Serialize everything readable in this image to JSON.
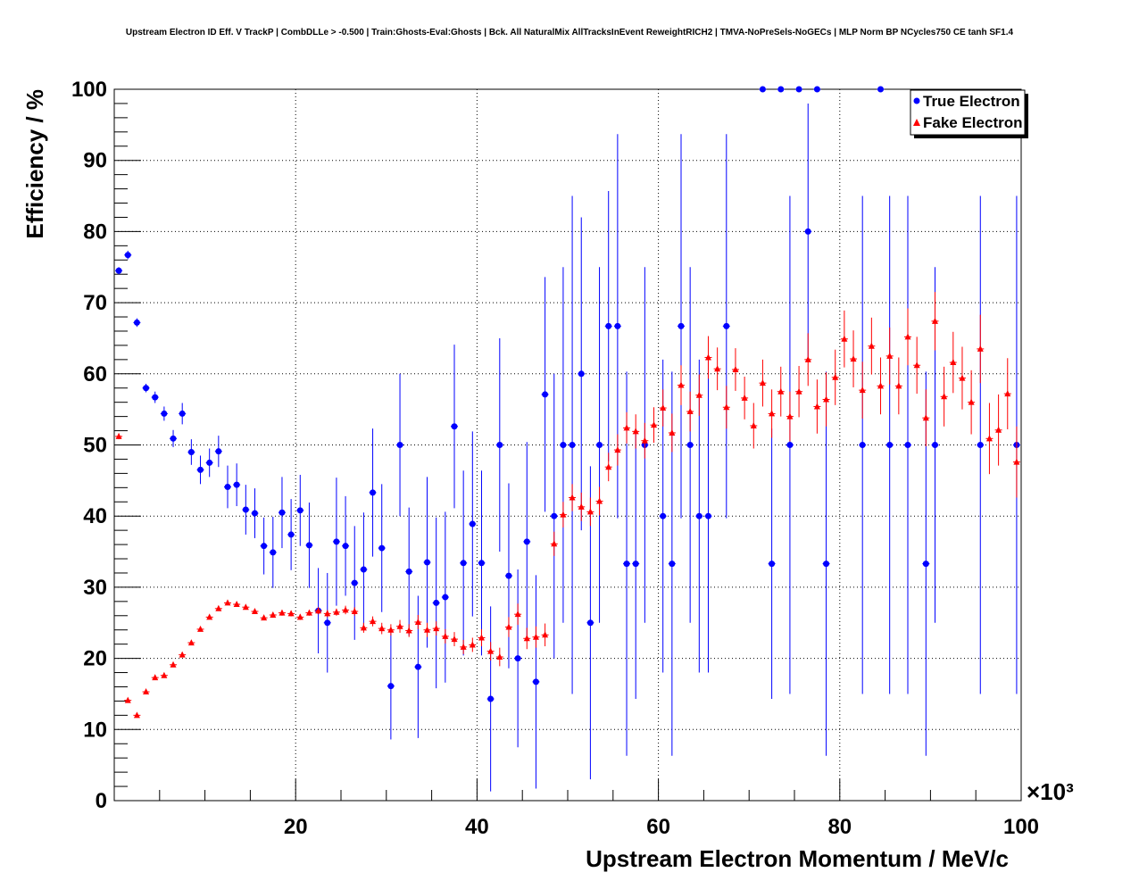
{
  "chart_data": {
    "type": "scatter",
    "title": "Upstream Electron ID Eff. V TrackP | CombDLLe > -0.500 | Train:Ghosts-Eval:Ghosts | Bck. All NaturalMix AllTracksInEvent ReweightRICH2 | TMVA-NoPreSels-NoGECs | MLP Norm BP NCycles750 CE tanh SF1.4",
    "xlabel": "Upstream Electron Momentum / MeV/c",
    "ylabel": "Efficiency / %",
    "x_multiplier_label": "×10³",
    "xlim": [
      0,
      100
    ],
    "ylim": [
      0,
      100
    ],
    "x_ticks": [
      "20",
      "40",
      "60",
      "80",
      "100"
    ],
    "y_ticks": [
      "0",
      "10",
      "20",
      "30",
      "40",
      "50",
      "60",
      "70",
      "80",
      "90",
      "100"
    ],
    "grid": true,
    "legend_position": "top-right",
    "series": [
      {
        "name": "True Electron",
        "color": "#0000ff",
        "marker": "circle",
        "points": [
          [
            0.5,
            74.5,
            0.5
          ],
          [
            1.5,
            76.7,
            0.6
          ],
          [
            2.5,
            67.2,
            0.6
          ],
          [
            3.5,
            58.0,
            0.6
          ],
          [
            4.5,
            56.7,
            0.8
          ],
          [
            5.5,
            54.4,
            1
          ],
          [
            6.5,
            50.9,
            1.2
          ],
          [
            7.5,
            54.4,
            1.5
          ],
          [
            8.5,
            49.0,
            1.8
          ],
          [
            9.5,
            46.5,
            2
          ],
          [
            10.5,
            47.5,
            2
          ],
          [
            11.5,
            49.1,
            2.2
          ],
          [
            12.5,
            44.1,
            3
          ],
          [
            13.5,
            44.4,
            3
          ],
          [
            14.5,
            40.9,
            3.5
          ],
          [
            15.5,
            40.4,
            3.5
          ],
          [
            16.5,
            35.8,
            4
          ],
          [
            17.5,
            34.9,
            5
          ],
          [
            18.5,
            40.5,
            5
          ],
          [
            19.5,
            37.4,
            5
          ],
          [
            20.5,
            40.8,
            5
          ],
          [
            21.5,
            35.9,
            6
          ],
          [
            22.5,
            26.7,
            6
          ],
          [
            23.5,
            25.0,
            7
          ],
          [
            24.5,
            36.4,
            9
          ],
          [
            25.5,
            35.8,
            7
          ],
          [
            26.5,
            30.6,
            8
          ],
          [
            27.5,
            32.5,
            8
          ],
          [
            28.5,
            43.3,
            9
          ],
          [
            29.5,
            35.5,
            9
          ],
          [
            30.5,
            16.1,
            7.5
          ],
          [
            31.5,
            50.0,
            10
          ],
          [
            32.5,
            32.2,
            9
          ],
          [
            33.5,
            18.8,
            10
          ],
          [
            34.5,
            33.5,
            12
          ],
          [
            35.5,
            27.8,
            12
          ],
          [
            36.5,
            28.6,
            12
          ],
          [
            37.5,
            52.6,
            11.5
          ],
          [
            38.5,
            33.4,
            13
          ],
          [
            39.5,
            38.9,
            13
          ],
          [
            40.5,
            33.4,
            13
          ],
          [
            41.5,
            14.3,
            13
          ],
          [
            42.5,
            50.0,
            15
          ],
          [
            43.5,
            31.6,
            13
          ],
          [
            44.5,
            20.0,
            12.5
          ],
          [
            45.5,
            36.4,
            14
          ],
          [
            46.5,
            16.7,
            15
          ],
          [
            47.5,
            57.1,
            16.5
          ],
          [
            48.5,
            40.0,
            20
          ],
          [
            49.5,
            50.0,
            25
          ],
          [
            50.5,
            50.0,
            35
          ],
          [
            51.5,
            60.0,
            22
          ],
          [
            52.5,
            25.0,
            22
          ],
          [
            53.5,
            50.0,
            25
          ],
          [
            54.5,
            66.7,
            19
          ],
          [
            55.5,
            66.7,
            27
          ],
          [
            56.5,
            33.3,
            27
          ],
          [
            57.5,
            33.3,
            19
          ],
          [
            58.5,
            50.0,
            25
          ],
          [
            60.5,
            40.0,
            22
          ],
          [
            61.5,
            33.3,
            27
          ],
          [
            62.5,
            66.7,
            27
          ],
          [
            63.5,
            50.0,
            25
          ],
          [
            64.5,
            40.0,
            22
          ],
          [
            65.5,
            40.0,
            22
          ],
          [
            67.5,
            66.7,
            27
          ],
          [
            71.5,
            100.0,
            0
          ],
          [
            72.5,
            33.3,
            19
          ],
          [
            73.5,
            100.0,
            0
          ],
          [
            74.5,
            50.0,
            35
          ],
          [
            75.5,
            100.0,
            0
          ],
          [
            76.5,
            80.0,
            18
          ],
          [
            77.5,
            100.0,
            0
          ],
          [
            78.5,
            33.3,
            27
          ],
          [
            82.5,
            50.0,
            35
          ],
          [
            84.5,
            100.0,
            0
          ],
          [
            85.5,
            50.0,
            35
          ],
          [
            87.5,
            50.0,
            35
          ],
          [
            89.5,
            33.3,
            27
          ],
          [
            90.5,
            50.0,
            25
          ],
          [
            95.5,
            50.0,
            35
          ],
          [
            99.5,
            50.0,
            35
          ]
        ]
      },
      {
        "name": "Fake Electron",
        "color": "#ff0000",
        "marker": "triangle",
        "points": [
          [
            0.5,
            51.2,
            0.4
          ],
          [
            1.5,
            14.1,
            0.3
          ],
          [
            2.5,
            12.0,
            0.3
          ],
          [
            3.5,
            15.3,
            0.3
          ],
          [
            4.5,
            17.3,
            0.3
          ],
          [
            5.5,
            17.6,
            0.3
          ],
          [
            6.5,
            19.1,
            0.3
          ],
          [
            7.5,
            20.5,
            0.3
          ],
          [
            8.5,
            22.2,
            0.3
          ],
          [
            9.5,
            24.1,
            0.3
          ],
          [
            10.5,
            25.8,
            0.3
          ],
          [
            11.5,
            27.0,
            0.3
          ],
          [
            12.5,
            27.8,
            0.3
          ],
          [
            13.5,
            27.6,
            0.3
          ],
          [
            14.5,
            27.2,
            0.3
          ],
          [
            15.5,
            26.6,
            0.3
          ],
          [
            16.5,
            25.7,
            0.3
          ],
          [
            17.5,
            26.1,
            0.4
          ],
          [
            18.5,
            26.4,
            0.4
          ],
          [
            19.5,
            26.3,
            0.4
          ],
          [
            20.5,
            25.8,
            0.4
          ],
          [
            21.5,
            26.4,
            0.4
          ],
          [
            22.5,
            26.7,
            0.5
          ],
          [
            23.5,
            26.3,
            0.5
          ],
          [
            24.5,
            26.5,
            0.5
          ],
          [
            25.5,
            26.8,
            0.6
          ],
          [
            26.5,
            26.6,
            0.6
          ],
          [
            27.5,
            24.3,
            0.7
          ],
          [
            28.5,
            25.2,
            0.7
          ],
          [
            29.5,
            24.2,
            0.8
          ],
          [
            30.5,
            24.0,
            0.8
          ],
          [
            31.5,
            24.5,
            0.9
          ],
          [
            32.5,
            23.9,
            0.9
          ],
          [
            33.5,
            25.1,
            1
          ],
          [
            34.5,
            24.0,
            1
          ],
          [
            35.5,
            24.2,
            1
          ],
          [
            36.5,
            23.1,
            1
          ],
          [
            37.5,
            22.7,
            1
          ],
          [
            38.5,
            21.6,
            1
          ],
          [
            39.5,
            21.9,
            1
          ],
          [
            40.5,
            22.9,
            1.2
          ],
          [
            41.5,
            21.0,
            1.3
          ],
          [
            42.5,
            20.2,
            1.3
          ],
          [
            43.5,
            24.4,
            1.4
          ],
          [
            44.5,
            26.2,
            1.5
          ],
          [
            45.5,
            22.8,
            1.5
          ],
          [
            46.5,
            23.0,
            1.5
          ],
          [
            47.5,
            23.3,
            1.6
          ],
          [
            48.5,
            36.1,
            1.7
          ],
          [
            49.5,
            40.2,
            1.8
          ],
          [
            50.5,
            42.6,
            1.9
          ],
          [
            51.5,
            41.3,
            2
          ],
          [
            52.5,
            40.6,
            2
          ],
          [
            53.5,
            42.1,
            2
          ],
          [
            54.5,
            46.9,
            2
          ],
          [
            55.5,
            49.3,
            2.2
          ],
          [
            56.5,
            52.4,
            2.2
          ],
          [
            57.5,
            51.9,
            2.4
          ],
          [
            58.5,
            50.6,
            2.5
          ],
          [
            59.5,
            52.8,
            2.5
          ],
          [
            60.5,
            55.2,
            2.6
          ],
          [
            61.5,
            51.7,
            2.7
          ],
          [
            62.5,
            58.4,
            2.8
          ],
          [
            63.5,
            54.7,
            2.8
          ],
          [
            64.5,
            57.0,
            2.9
          ],
          [
            65.5,
            62.3,
            3
          ],
          [
            66.5,
            60.7,
            3
          ],
          [
            67.5,
            55.3,
            3
          ],
          [
            68.5,
            60.6,
            3
          ],
          [
            69.5,
            56.6,
            3
          ],
          [
            70.5,
            52.7,
            3.2
          ],
          [
            71.5,
            58.7,
            3.3
          ],
          [
            72.5,
            54.4,
            3.4
          ],
          [
            73.5,
            57.5,
            3.5
          ],
          [
            74.5,
            54.0,
            3.5
          ],
          [
            75.5,
            57.5,
            3.6
          ],
          [
            76.5,
            62.0,
            3.7
          ],
          [
            77.5,
            55.4,
            3.8
          ],
          [
            78.5,
            56.4,
            3.8
          ],
          [
            79.5,
            59.5,
            3.9
          ],
          [
            80.5,
            64.9,
            4
          ],
          [
            81.5,
            62.1,
            4
          ],
          [
            82.5,
            57.7,
            4
          ],
          [
            83.5,
            63.9,
            4
          ],
          [
            84.5,
            58.3,
            4
          ],
          [
            85.5,
            62.5,
            4
          ],
          [
            86.5,
            58.3,
            4
          ],
          [
            87.5,
            65.2,
            4
          ],
          [
            88.5,
            61.2,
            4
          ],
          [
            89.5,
            53.8,
            4
          ],
          [
            90.5,
            67.4,
            4.1
          ],
          [
            91.5,
            56.8,
            4.2
          ],
          [
            92.5,
            61.6,
            4.3
          ],
          [
            93.5,
            59.4,
            4.4
          ],
          [
            94.5,
            56.0,
            4.5
          ],
          [
            95.5,
            63.5,
            4.8
          ],
          [
            96.5,
            50.9,
            5
          ],
          [
            97.5,
            52.1,
            5
          ],
          [
            98.5,
            57.2,
            5
          ],
          [
            99.5,
            47.6,
            5
          ]
        ]
      }
    ]
  }
}
